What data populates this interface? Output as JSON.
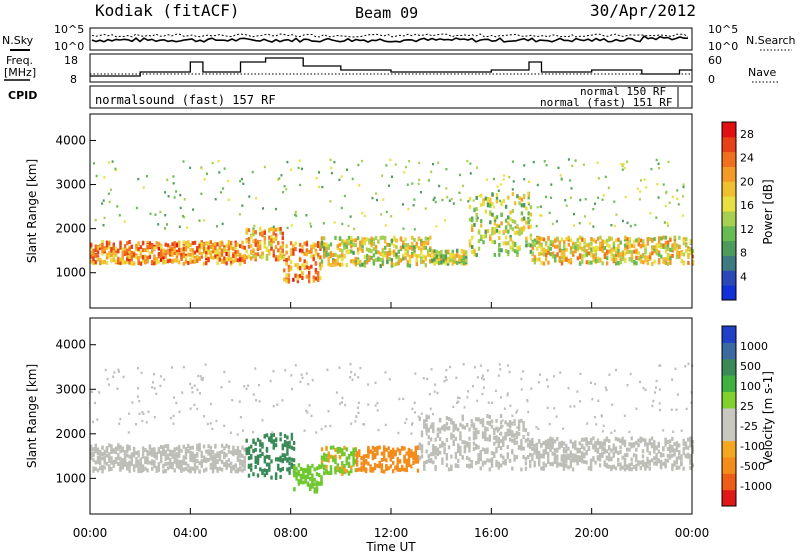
{
  "header": {
    "station": "Kodiak (fitACF)",
    "beam": "Beam 09",
    "date": "30/Apr/2012"
  },
  "left_labels": {
    "nsky": "N.Sky",
    "freq": "Freq.",
    "freq_unit": "[MHz]",
    "cpid": "CPID"
  },
  "right_labels": {
    "nsearch": "N.Search",
    "nave": "Nave"
  },
  "strip_ticks": {
    "noise_top": "10^5",
    "noise_bottom": "10^0",
    "freq_top": "18",
    "freq_bottom": "8",
    "nave_top": "60",
    "nave_bottom": "0"
  },
  "cpid_labels": {
    "main": "normalsound (fast) 157 RF",
    "right_top": "normal 150 RF",
    "right_bottom": "normal (fast) 151 RF"
  },
  "x_axis": {
    "label": "Time UT",
    "ticks": [
      "00:00",
      "04:00",
      "08:00",
      "12:00",
      "16:00",
      "20:00",
      "00:00"
    ]
  },
  "colors": {
    "power_scale": [
      "#1030d8",
      "#2a48b8",
      "#3e7a82",
      "#4c9a5c",
      "#66bb52",
      "#a8d050",
      "#e8e040",
      "#f0c030",
      "#f49a28",
      "#f07020",
      "#e84018",
      "#e01010"
    ],
    "velocity_scale": [
      "#e01818",
      "#ee5c18",
      "#f48c1c",
      "#f4a820",
      "#c8c8c0",
      "#c8c8c0",
      "#80d030",
      "#40b040",
      "#3a8a58",
      "#3a6aa0",
      "#2040c8"
    ],
    "ground_scatter": "#bebeb8"
  },
  "chart_data": [
    {
      "type": "heatmap",
      "name_panel": "power",
      "ylabel": "Slant Range [km]",
      "y_ticks": [
        1000,
        2000,
        3000,
        4000
      ],
      "ylim": [
        200,
        4600
      ],
      "xlim_hours": [
        0,
        24
      ],
      "colorbar": {
        "label": "Power [dB]",
        "ticks": [
          4,
          8,
          12,
          16,
          20,
          24,
          28
        ],
        "range": [
          0,
          30
        ]
      },
      "bands": [
        {
          "t0": 0.0,
          "t1": 6.2,
          "r0": 1200,
          "r1": 1700,
          "level": 22
        },
        {
          "t0": 6.2,
          "t1": 7.7,
          "r0": 1300,
          "r1": 2000,
          "level": 20
        },
        {
          "t0": 7.7,
          "t1": 9.2,
          "r0": 800,
          "r1": 1700,
          "level": 22
        },
        {
          "t0": 9.2,
          "t1": 13.6,
          "r0": 1150,
          "r1": 1800,
          "level": 16
        },
        {
          "t0": 13.6,
          "t1": 15.0,
          "r0": 1200,
          "r1": 1500,
          "level": 14
        },
        {
          "t0": 15.1,
          "t1": 17.6,
          "r0": 1400,
          "r1": 2800,
          "level": 14
        },
        {
          "t0": 17.6,
          "t1": 24.0,
          "r0": 1200,
          "r1": 1800,
          "level": 18
        }
      ]
    },
    {
      "type": "heatmap",
      "name_panel": "velocity",
      "ylabel": "Slant Range [km]",
      "y_ticks": [
        1000,
        2000,
        3000,
        4000
      ],
      "ylim": [
        200,
        4600
      ],
      "xlim_hours": [
        0,
        24
      ],
      "colorbar": {
        "label": "Velocity [m s-1]",
        "ticks": [
          1000,
          500,
          100,
          25,
          -25,
          -100,
          -500,
          -1000
        ]
      },
      "bands": [
        {
          "t0": 0.0,
          "t1": 6.2,
          "r0": 1150,
          "r1": 1750,
          "kind": "ground"
        },
        {
          "t0": 6.2,
          "t1": 8.1,
          "r0": 1000,
          "r1": 2000,
          "value": 150
        },
        {
          "t0": 8.1,
          "t1": 9.2,
          "r0": 700,
          "r1": 1300,
          "value": 80
        },
        {
          "t0": 9.2,
          "t1": 10.6,
          "r0": 1100,
          "r1": 1700,
          "value": 60
        },
        {
          "t0": 10.6,
          "t1": 13.1,
          "r0": 1150,
          "r1": 1700,
          "value": -120
        },
        {
          "t0": 13.1,
          "t1": 17.5,
          "r0": 1200,
          "r1": 2400,
          "kind": "ground"
        },
        {
          "t0": 17.5,
          "t1": 24.0,
          "r0": 1200,
          "r1": 1900,
          "kind": "ground"
        }
      ]
    }
  ]
}
